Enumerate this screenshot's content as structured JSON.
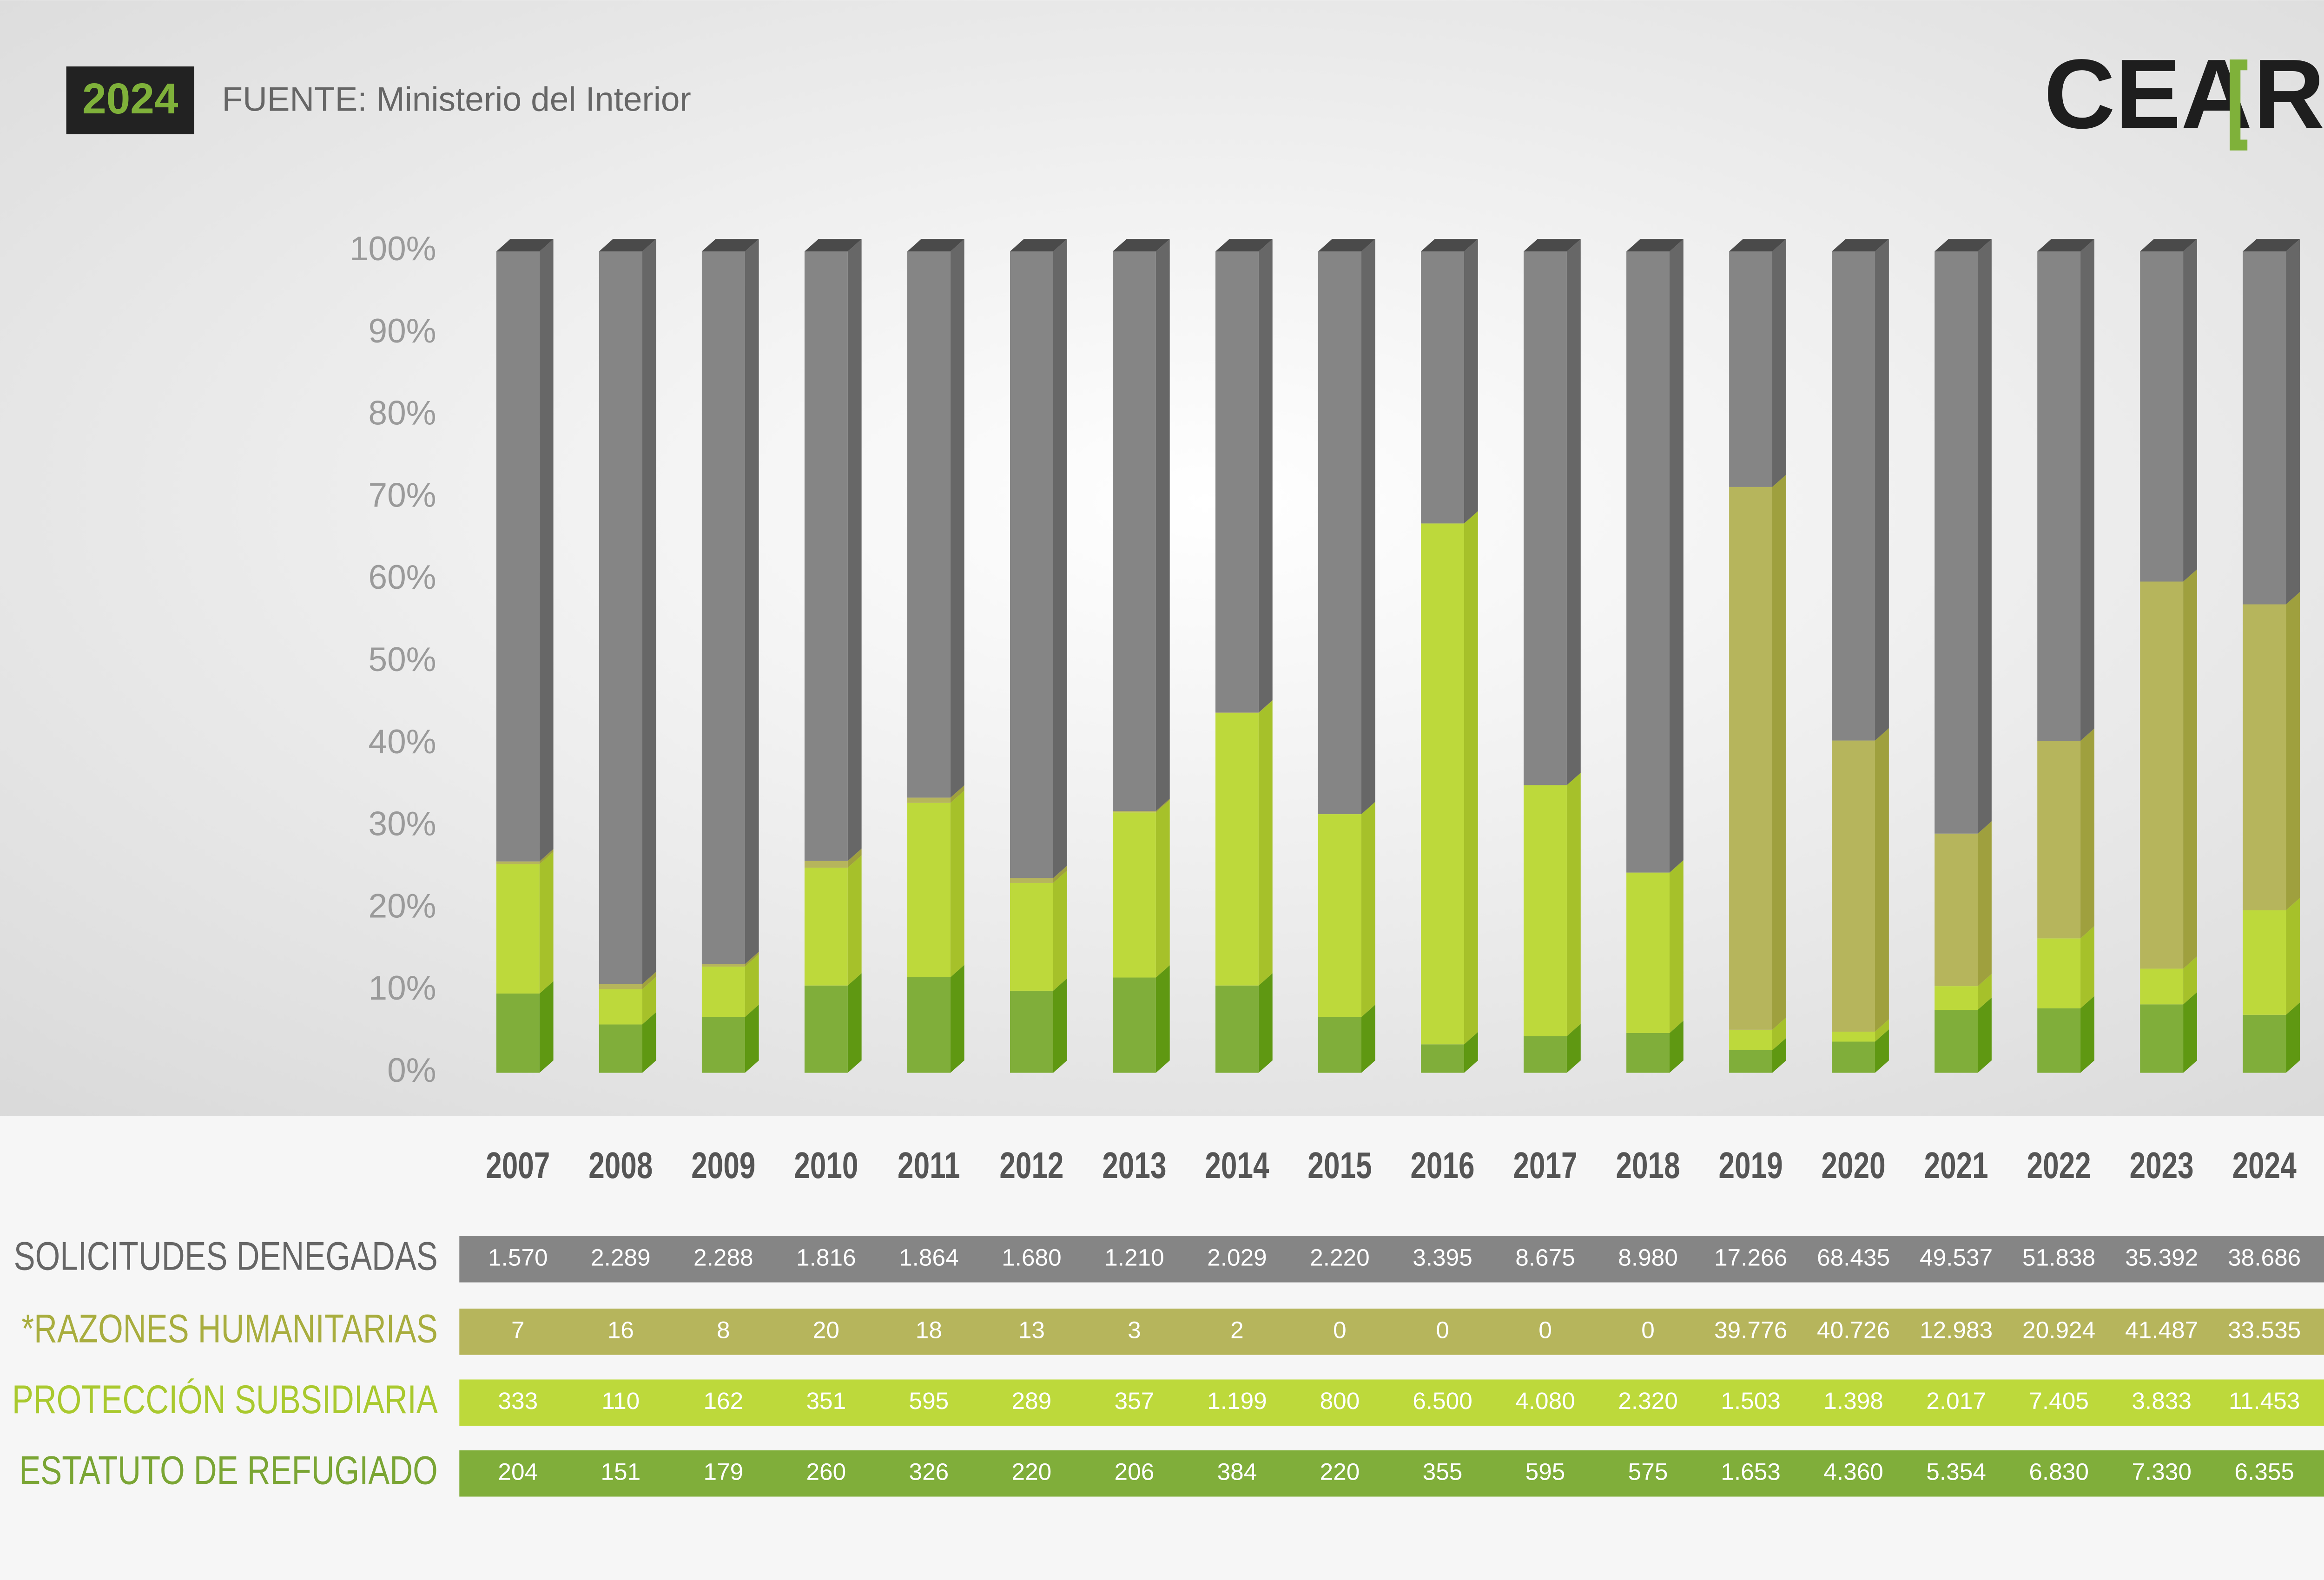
{
  "header": {
    "badge": "2024",
    "source": "FUENTE: Ministerio del Interior",
    "logo": "CEA",
    "logo_bracketed": "R"
  },
  "chart_data": {
    "type": "bar",
    "stacking": "percent",
    "categories": [
      "2007",
      "2008",
      "2009",
      "2010",
      "2011",
      "2012",
      "2013",
      "2014",
      "2015",
      "2016",
      "2017",
      "2018",
      "2019",
      "2020",
      "2021",
      "2022",
      "2023",
      "2024"
    ],
    "ylim": [
      0,
      100
    ],
    "yticks": [
      {
        "value": 0,
        "label": "0%"
      },
      {
        "value": 10,
        "label": "10%"
      },
      {
        "value": 20,
        "label": "20%"
      },
      {
        "value": 30,
        "label": "30%"
      },
      {
        "value": 40,
        "label": "40%"
      },
      {
        "value": 50,
        "label": "50%"
      },
      {
        "value": 60,
        "label": "60%"
      },
      {
        "value": 70,
        "label": "70%"
      },
      {
        "value": 80,
        "label": "80%"
      },
      {
        "value": 90,
        "label": "90%"
      },
      {
        "value": 100,
        "label": "100%"
      }
    ],
    "series": [
      {
        "name": "ESTATUTO DE REFUGIADO",
        "color": "#80ae3a",
        "side_color": "#5f9812",
        "label_color": "#7aa534",
        "values": [
          204,
          151,
          179,
          260,
          326,
          220,
          206,
          384,
          220,
          355,
          595,
          575,
          1653,
          4360,
          5354,
          6830,
          7330,
          6355
        ],
        "value_labels": [
          "204",
          "151",
          "179",
          "260",
          "326",
          "220",
          "206",
          "384",
          "220",
          "355",
          "595",
          "575",
          "1.653",
          "4.360",
          "5.354",
          "6.830",
          "7.330",
          "6.355"
        ]
      },
      {
        "name": "PROTECCIÓN SUBSIDIARIA",
        "color": "#bdd93b",
        "side_color": "#a6c12a",
        "label_color": "#a9c92e",
        "values": [
          333,
          110,
          162,
          351,
          595,
          289,
          357,
          1199,
          800,
          6500,
          4080,
          2320,
          1503,
          1398,
          2017,
          7405,
          3833,
          11453
        ],
        "value_labels": [
          "333",
          "110",
          "162",
          "351",
          "595",
          "289",
          "357",
          "1.199",
          "800",
          "6.500",
          "4.080",
          "2.320",
          "1.503",
          "1.398",
          "2.017",
          "7.405",
          "3.833",
          "11.453"
        ]
      },
      {
        "name": "*RAZONES HUMANITARIAS",
        "color": "#b6b55c",
        "side_color": "#9fa03e",
        "label_color": "#a8ad3e",
        "values": [
          7,
          16,
          8,
          20,
          18,
          13,
          3,
          2,
          0,
          0,
          0,
          0,
          39776,
          40726,
          12983,
          20924,
          41487,
          33535
        ],
        "value_labels": [
          "7",
          "16",
          "8",
          "20",
          "18",
          "13",
          "3",
          "2",
          "0",
          "0",
          "0",
          "0",
          "39.776",
          "40.726",
          "12.983",
          "20.924",
          "41.487",
          "33.535"
        ]
      },
      {
        "name": "SOLICITUDES DENEGADAS",
        "color": "#858585",
        "side_color": "#676767",
        "label_color": "#666666",
        "values": [
          1570,
          2289,
          2288,
          1816,
          1864,
          1680,
          1210,
          2029,
          2220,
          3395,
          8675,
          8980,
          17266,
          68435,
          49537,
          51838,
          35392,
          38686
        ],
        "value_labels": [
          "1.570",
          "2.289",
          "2.288",
          "1.816",
          "1.864",
          "1.680",
          "1.210",
          "2.029",
          "2.220",
          "3.395",
          "8.675",
          "8.980",
          "17.266",
          "68.435",
          "49.537",
          "51.838",
          "35.392",
          "38.686"
        ]
      }
    ]
  }
}
